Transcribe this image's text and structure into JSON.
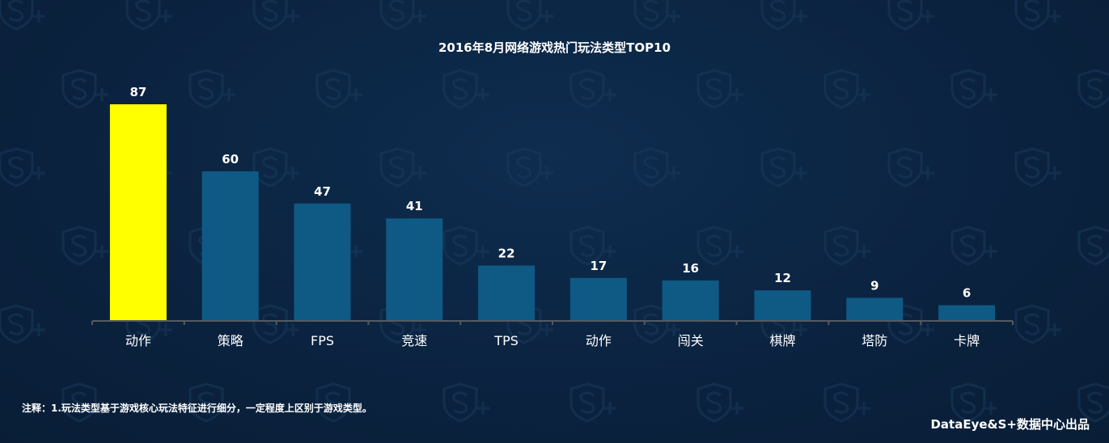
{
  "chart_data": {
    "type": "bar",
    "title": "2016年8月网络游戏热门玩法类型TOP10",
    "categories": [
      "动作",
      "策略",
      "FPS",
      "竞速",
      "TPS",
      "动作",
      "闯关",
      "棋牌",
      "塔防",
      "卡牌"
    ],
    "values": [
      87,
      60,
      47,
      41,
      22,
      17,
      16,
      12,
      9,
      6
    ],
    "xlabel": "",
    "ylabel": "",
    "ylim": [
      0,
      87
    ],
    "grid": false,
    "legend": "none",
    "colors": {
      "highlight": "#ffff00",
      "bar": "#0e5a84",
      "axis": "#555a60",
      "text": "#ffffff"
    }
  },
  "footnote": "注释：1.玩法类型基于游戏核心玩法特征进行细分，一定程度上区别于游戏类型。",
  "credit": "DataEye&S+数据中心出品"
}
